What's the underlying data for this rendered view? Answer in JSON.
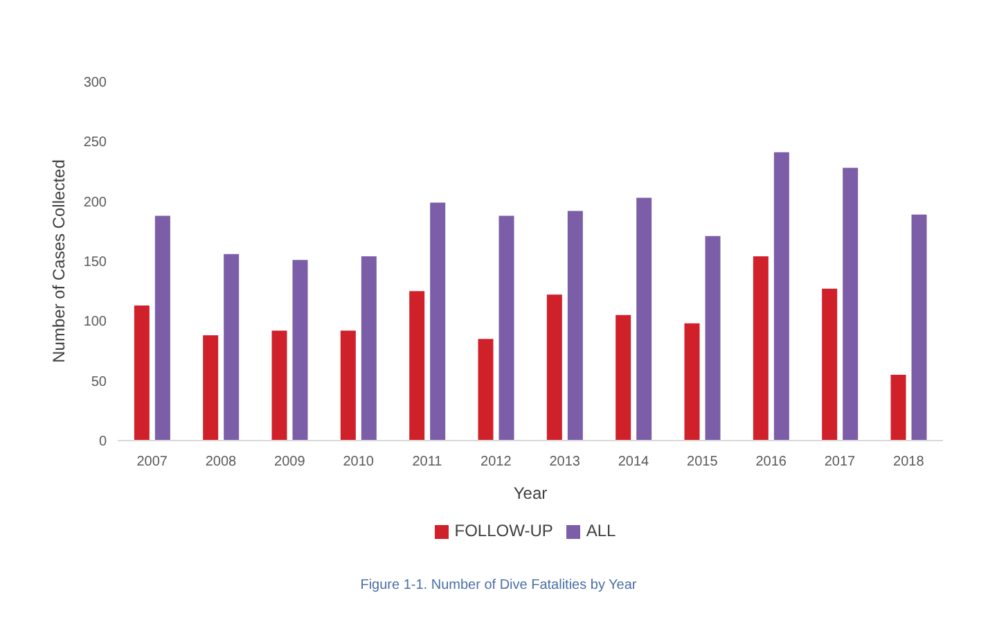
{
  "chart_data": {
    "type": "bar",
    "categories": [
      "2007",
      "2008",
      "2009",
      "2010",
      "2011",
      "2012",
      "2013",
      "2014",
      "2015",
      "2016",
      "2017",
      "2018"
    ],
    "series": [
      {
        "name": "FOLLOW-UP",
        "color": "#d0202a",
        "values": [
          113,
          88,
          92,
          92,
          125,
          85,
          122,
          105,
          98,
          154,
          127,
          55
        ]
      },
      {
        "name": "ALL",
        "color": "#7b5ea7",
        "values": [
          188,
          156,
          151,
          154,
          199,
          188,
          192,
          203,
          171,
          241,
          228,
          189
        ]
      }
    ],
    "xlabel": "Year",
    "ylabel": "Number of Cases Collected",
    "ylim": [
      0,
      300
    ],
    "yticks": [
      0,
      50,
      100,
      150,
      200,
      250,
      300
    ],
    "grid": false,
    "legend": "bottom",
    "annotations": [
      "Figure 1-1. Number of Dive Fatalities by Year"
    ]
  }
}
